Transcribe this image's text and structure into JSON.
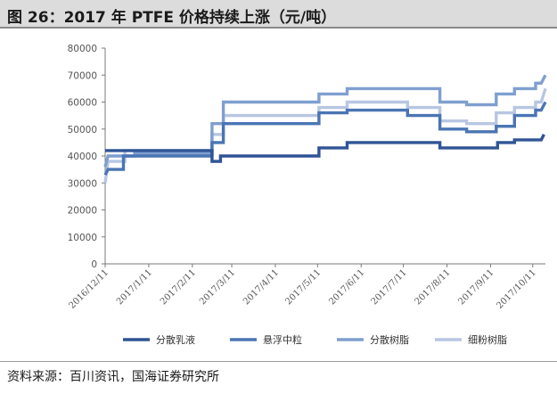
{
  "figure": {
    "title": "图 26：2017 年 PTFE 价格持续上涨（元/吨）",
    "source": "资料来源：百川资讯，国海证券研究所"
  },
  "chart_data": {
    "type": "line",
    "title": "",
    "xlabel": "",
    "ylabel": "",
    "ylim": [
      0,
      80000
    ],
    "yticks": [
      0,
      10000,
      20000,
      30000,
      40000,
      50000,
      60000,
      70000,
      80000
    ],
    "xlim": [
      "2016-12-11",
      "2017-10-20"
    ],
    "xticks": [
      "2016/12/11",
      "2017/1/11",
      "2017/2/11",
      "2017/3/11",
      "2017/4/11",
      "2017/5/11",
      "2017/6/11",
      "2017/7/11",
      "2017/8/11",
      "2017/9/11",
      "2017/10/11"
    ],
    "grid": false,
    "legend_position": "bottom",
    "series": [
      {
        "name": "分散乳液",
        "color": "#2f5496",
        "points": [
          [
            "2016-12-11",
            42000
          ],
          [
            "2017-02-25",
            42000
          ],
          [
            "2017-02-25",
            38000
          ],
          [
            "2017-03-03",
            38000
          ],
          [
            "2017-03-03",
            40000
          ],
          [
            "2017-05-12",
            40000
          ],
          [
            "2017-05-12",
            43000
          ],
          [
            "2017-06-01",
            43000
          ],
          [
            "2017-06-01",
            45000
          ],
          [
            "2017-08-06",
            45000
          ],
          [
            "2017-08-06",
            43000
          ],
          [
            "2017-09-16",
            43000
          ],
          [
            "2017-09-16",
            45000
          ],
          [
            "2017-09-28",
            45000
          ],
          [
            "2017-09-28",
            46000
          ],
          [
            "2017-10-17",
            46000
          ],
          [
            "2017-10-19",
            48000
          ]
        ]
      },
      {
        "name": "悬浮中粒",
        "color": "#4a75b4",
        "points": [
          [
            "2016-12-11",
            33000
          ],
          [
            "2016-12-13",
            35000
          ],
          [
            "2016-12-24",
            35000
          ],
          [
            "2016-12-24",
            40000
          ],
          [
            "2017-02-25",
            40000
          ],
          [
            "2017-02-25",
            45000
          ],
          [
            "2017-03-05",
            45000
          ],
          [
            "2017-03-05",
            52000
          ],
          [
            "2017-05-12",
            52000
          ],
          [
            "2017-05-12",
            56000
          ],
          [
            "2017-06-01",
            56000
          ],
          [
            "2017-06-01",
            57000
          ],
          [
            "2017-07-14",
            57000
          ],
          [
            "2017-07-14",
            55000
          ],
          [
            "2017-08-06",
            55000
          ],
          [
            "2017-08-06",
            50000
          ],
          [
            "2017-08-25",
            50000
          ],
          [
            "2017-08-25",
            49000
          ],
          [
            "2017-09-15",
            49000
          ],
          [
            "2017-09-15",
            51000
          ],
          [
            "2017-09-28",
            51000
          ],
          [
            "2017-09-28",
            55000
          ],
          [
            "2017-10-13",
            55000
          ],
          [
            "2017-10-13",
            57000
          ],
          [
            "2017-10-17",
            57000
          ],
          [
            "2017-10-20",
            60000
          ]
        ]
      },
      {
        "name": "分散树脂",
        "color": "#7f9fcf",
        "points": [
          [
            "2016-12-11",
            36000
          ],
          [
            "2016-12-13",
            40000
          ],
          [
            "2017-01-01",
            40000
          ],
          [
            "2017-01-01",
            41000
          ],
          [
            "2017-02-25",
            41000
          ],
          [
            "2017-02-25",
            52000
          ],
          [
            "2017-03-05",
            52000
          ],
          [
            "2017-03-05",
            60000
          ],
          [
            "2017-05-12",
            60000
          ],
          [
            "2017-05-12",
            63000
          ],
          [
            "2017-06-01",
            63000
          ],
          [
            "2017-06-01",
            65000
          ],
          [
            "2017-08-06",
            65000
          ],
          [
            "2017-08-06",
            60000
          ],
          [
            "2017-08-25",
            60000
          ],
          [
            "2017-08-25",
            59000
          ],
          [
            "2017-09-15",
            59000
          ],
          [
            "2017-09-15",
            63000
          ],
          [
            "2017-09-28",
            63000
          ],
          [
            "2017-09-28",
            65000
          ],
          [
            "2017-10-13",
            65000
          ],
          [
            "2017-10-13",
            67000
          ],
          [
            "2017-10-17",
            67000
          ],
          [
            "2017-10-20",
            70000
          ]
        ]
      },
      {
        "name": "细粉树脂",
        "color": "#b7c6e3",
        "points": [
          [
            "2016-12-11",
            30000
          ],
          [
            "2016-12-13",
            38000
          ],
          [
            "2016-12-25",
            38000
          ],
          [
            "2016-12-25",
            42000
          ],
          [
            "2017-02-25",
            42000
          ],
          [
            "2017-02-25",
            48000
          ],
          [
            "2017-03-05",
            48000
          ],
          [
            "2017-03-05",
            55000
          ],
          [
            "2017-05-12",
            55000
          ],
          [
            "2017-05-12",
            58000
          ],
          [
            "2017-06-01",
            58000
          ],
          [
            "2017-06-01",
            60000
          ],
          [
            "2017-07-14",
            60000
          ],
          [
            "2017-07-14",
            58000
          ],
          [
            "2017-08-06",
            58000
          ],
          [
            "2017-08-06",
            53000
          ],
          [
            "2017-08-25",
            53000
          ],
          [
            "2017-08-25",
            52000
          ],
          [
            "2017-09-15",
            52000
          ],
          [
            "2017-09-15",
            56000
          ],
          [
            "2017-09-28",
            56000
          ],
          [
            "2017-09-28",
            58000
          ],
          [
            "2017-10-13",
            58000
          ],
          [
            "2017-10-13",
            60000
          ],
          [
            "2017-10-17",
            60000
          ],
          [
            "2017-10-20",
            65000
          ]
        ]
      }
    ]
  }
}
